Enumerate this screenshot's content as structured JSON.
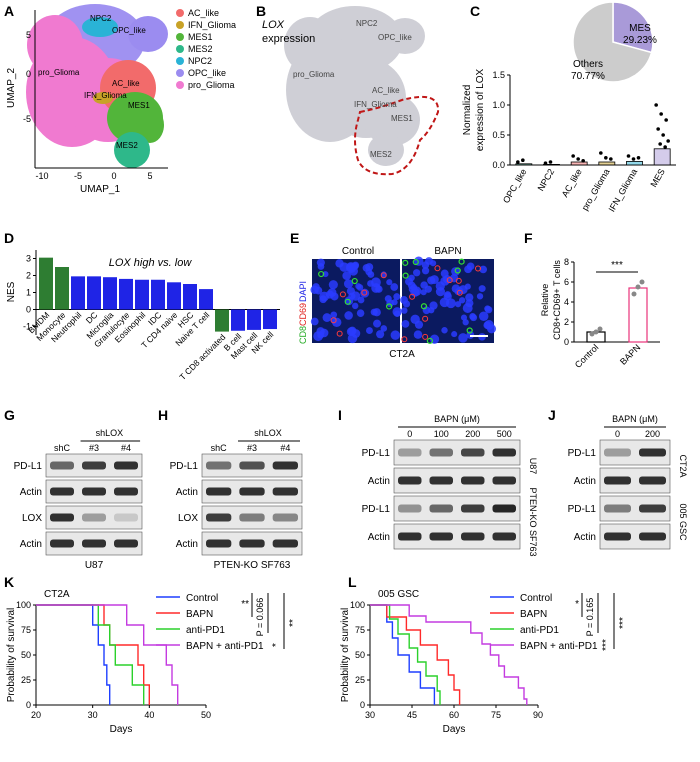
{
  "panel_letters": [
    "A",
    "B",
    "C",
    "D",
    "E",
    "F",
    "G",
    "H",
    "I",
    "J",
    "K",
    "L"
  ],
  "colors": {
    "AC_like": "#f26b6b",
    "IFN_Glioma": "#c8a227",
    "MES1": "#52b53a",
    "MES2": "#2eb88a",
    "NPC2": "#2ab3d6",
    "OPC_like": "#9b8cf0",
    "pro_Glioma": "#f07ad0",
    "nes_green": "#2e7d32",
    "nes_blue": "#1f24e6",
    "mes_purple": "#a99ad8",
    "ctrl_blue": "#1f3fff",
    "bapn_red": "#ff2a2a",
    "pd1_green": "#2bd12b",
    "combo_purple": "#c43be0",
    "f_pink": "#e8327a"
  },
  "panelA": {
    "xlabel": "UMAP_1",
    "ylabel": "UMAP_2",
    "xticks": [
      "-10",
      "-5",
      "0",
      "5"
    ],
    "yticks": [
      "5",
      "0",
      "-5"
    ],
    "cluster_labels": [
      "NPC2",
      "OPC_like",
      "pro_Glioma",
      "AC_like",
      "IFN_Glioma",
      "MES1",
      "MES2"
    ],
    "legend": [
      "AC_like",
      "IFN_Glioma",
      "MES1",
      "MES2",
      "NPC2",
      "OPC_like",
      "pro_Glioma"
    ]
  },
  "panelB": {
    "title": "LOX",
    "subtitle": "expression",
    "labels": [
      "NPC2",
      "OPC_like",
      "pro_Glioma",
      "AC_like",
      "IFN_Glioma",
      "MES1",
      "MES2"
    ]
  },
  "panelC": {
    "pie": {
      "slices": [
        {
          "label": "MES",
          "pct": "29.23%",
          "value": 29.23
        },
        {
          "label": "Others",
          "pct": "70.77%",
          "value": 70.77
        }
      ]
    },
    "ylabel_1": "Normalized",
    "ylabel_2": "expression of LOX",
    "yticks": [
      "0.0",
      "0.5",
      "1.0",
      "1.5"
    ],
    "chart_data": {
      "type": "bar",
      "categories": [
        "OPC_like",
        "NPC2",
        "AC_like",
        "pro_Glioma",
        "IFN_Glioma",
        "MES"
      ],
      "values": [
        0.02,
        0.01,
        0.05,
        0.05,
        0.06,
        0.27
      ],
      "ylim": [
        0,
        1.5
      ]
    }
  },
  "panelD": {
    "title": "LOX high vs. low",
    "ylabel": "NES",
    "yticks": [
      "3",
      "2",
      "1",
      "0",
      "-1"
    ],
    "chart_data": {
      "type": "bar",
      "categories": [
        "BMDM",
        "Monocyte",
        "Neutrophil",
        "DC",
        "Microglia",
        "Granulocyte",
        "Eosinophil",
        "IDC",
        "T CD4 naive",
        "HSC",
        "Naive T cell",
        "T CD8 activated",
        "B cell",
        "Mast cell",
        "NK cell"
      ],
      "values": [
        3.05,
        2.5,
        1.95,
        1.95,
        1.9,
        1.8,
        1.75,
        1.75,
        1.6,
        1.5,
        1.2,
        -1.3,
        -1.25,
        -1.2,
        -1.15
      ],
      "ylim": [
        -1.5,
        3.5
      ]
    }
  },
  "panelE": {
    "col1": "Control",
    "col2": "BAPN",
    "side_cd8": "CD8",
    "side_cd69": "CD69",
    "side_dapi": "DAPI",
    "caption": "CT2A"
  },
  "panelF": {
    "ylabel_1": "Relative",
    "ylabel_2": "CD8+CD69+ T cells",
    "sig": "***",
    "yticks": [
      "0",
      "2",
      "4",
      "6",
      "8"
    ],
    "chart_data": {
      "type": "bar",
      "categories": [
        "Control",
        "BAPN"
      ],
      "values": [
        1.0,
        5.4
      ],
      "ylim": [
        0,
        8
      ]
    }
  },
  "panelG": {
    "sh": "shLOX",
    "lanes": [
      "shC",
      "#3",
      "#4"
    ],
    "rows": [
      "PD-L1",
      "Actin",
      "LOX",
      "Actin"
    ],
    "caption": "U87"
  },
  "panelH": {
    "sh": "shLOX",
    "lanes": [
      "shC",
      "#3",
      "#4"
    ],
    "rows": [
      "PD-L1",
      "Actin",
      "LOX",
      "Actin"
    ],
    "caption": "PTEN-KO SF763"
  },
  "panelI": {
    "header": "BAPN (μM)",
    "lanes": [
      "0",
      "100",
      "200",
      "500"
    ],
    "rows": [
      "PD-L1",
      "Actin",
      "PD-L1",
      "Actin"
    ],
    "side1": "U87",
    "side2": "PTEN-KO SF763"
  },
  "panelJ": {
    "header": "BAPN (μM)",
    "lanes": [
      "0",
      "200"
    ],
    "rows": [
      "PD-L1",
      "Actin",
      "PD-L1",
      "Actin"
    ],
    "side1": "CT2A",
    "side2": "005 GSC"
  },
  "panelK": {
    "title": "CT2A",
    "xlabel": "Days",
    "ylabel": "Probability of survival",
    "xticks": [
      "20",
      "30",
      "40",
      "50"
    ],
    "yticks": [
      "100",
      "75",
      "50",
      "25",
      "0"
    ],
    "legend": [
      "Control",
      "BAPN",
      "anti-PD1",
      "BAPN + anti-PD1"
    ],
    "stats": [
      "**",
      "P = 0.066",
      "*",
      "**"
    ],
    "chart_data": {
      "type": "line",
      "xlim": [
        20,
        50
      ],
      "ylim": [
        0,
        100
      ],
      "series": [
        {
          "name": "Control",
          "points": [
            [
              20,
              100
            ],
            [
              30,
              100
            ],
            [
              30,
              80
            ],
            [
              31,
              80
            ],
            [
              31,
              60
            ],
            [
              32,
              60
            ],
            [
              32,
              40
            ],
            [
              32.5,
              40
            ],
            [
              32.5,
              20
            ],
            [
              33,
              20
            ],
            [
              33,
              0
            ]
          ]
        },
        {
          "name": "BAPN",
          "points": [
            [
              20,
              100
            ],
            [
              32,
              100
            ],
            [
              32,
              80
            ],
            [
              33,
              80
            ],
            [
              33,
              60
            ],
            [
              38,
              60
            ],
            [
              38,
              40
            ],
            [
              39,
              40
            ],
            [
              39,
              20
            ],
            [
              40,
              20
            ],
            [
              40,
              0
            ]
          ]
        },
        {
          "name": "anti-PD1",
          "points": [
            [
              20,
              100
            ],
            [
              31,
              100
            ],
            [
              31,
              80
            ],
            [
              33,
              80
            ],
            [
              33,
              60
            ],
            [
              34,
              60
            ],
            [
              34,
              40
            ],
            [
              37,
              40
            ],
            [
              37,
              20
            ],
            [
              39,
              20
            ],
            [
              39,
              0
            ]
          ]
        },
        {
          "name": "BAPN + anti-PD1",
          "points": [
            [
              20,
              100
            ],
            [
              36,
              100
            ],
            [
              36,
              80
            ],
            [
              39,
              80
            ],
            [
              39,
              60
            ],
            [
              43,
              60
            ],
            [
              43,
              40
            ],
            [
              44,
              40
            ],
            [
              44,
              20
            ],
            [
              45,
              20
            ],
            [
              45,
              0
            ]
          ]
        }
      ]
    }
  },
  "panelL": {
    "title": "005 GSC",
    "xlabel": "Days",
    "ylabel": "Probability of survival",
    "xticks": [
      "30",
      "45",
      "60",
      "75",
      "90"
    ],
    "yticks": [
      "100",
      "75",
      "50",
      "25",
      "0"
    ],
    "legend": [
      "Control",
      "BAPN",
      "anti-PD1",
      "BAPN + anti-PD1"
    ],
    "stats": [
      "*",
      "P = 0.165",
      "***",
      "***"
    ],
    "chart_data": {
      "type": "line",
      "xlim": [
        30,
        90
      ],
      "ylim": [
        0,
        100
      ],
      "series": [
        {
          "name": "Control",
          "points": [
            [
              30,
              100
            ],
            [
              36,
              100
            ],
            [
              36,
              83
            ],
            [
              38,
              83
            ],
            [
              38,
              67
            ],
            [
              40,
              67
            ],
            [
              40,
              50
            ],
            [
              44,
              50
            ],
            [
              44,
              33
            ],
            [
              48,
              33
            ],
            [
              48,
              17
            ],
            [
              53,
              17
            ],
            [
              53,
              0
            ]
          ]
        },
        {
          "name": "BAPN",
          "points": [
            [
              30,
              100
            ],
            [
              36,
              100
            ],
            [
              36,
              88
            ],
            [
              43,
              88
            ],
            [
              43,
              75
            ],
            [
              48,
              75
            ],
            [
              48,
              60
            ],
            [
              54,
              60
            ],
            [
              54,
              45
            ],
            [
              58,
              45
            ],
            [
              58,
              30
            ],
            [
              60,
              30
            ],
            [
              60,
              15
            ],
            [
              62,
              15
            ],
            [
              62,
              0
            ]
          ]
        },
        {
          "name": "anti-PD1",
          "points": [
            [
              30,
              100
            ],
            [
              37,
              100
            ],
            [
              37,
              86
            ],
            [
              40,
              86
            ],
            [
              40,
              71
            ],
            [
              44,
              71
            ],
            [
              44,
              57
            ],
            [
              47,
              57
            ],
            [
              47,
              43
            ],
            [
              50,
              43
            ],
            [
              50,
              29
            ],
            [
              54,
              29
            ],
            [
              54,
              14
            ],
            [
              55,
              14
            ],
            [
              55,
              0
            ]
          ]
        },
        {
          "name": "BAPN + anti-PD1",
          "points": [
            [
              30,
              100
            ],
            [
              44,
              100
            ],
            [
              44,
              89
            ],
            [
              50,
              89
            ],
            [
              50,
              83
            ],
            [
              66,
              83
            ],
            [
              66,
              72
            ],
            [
              70,
              72
            ],
            [
              70,
              61
            ],
            [
              73,
              61
            ],
            [
              73,
              50
            ],
            [
              76,
              50
            ],
            [
              76,
              39
            ],
            [
              78,
              39
            ],
            [
              78,
              28
            ],
            [
              83,
              28
            ],
            [
              83,
              17
            ],
            [
              85,
              17
            ],
            [
              85,
              6
            ],
            [
              86,
              6
            ],
            [
              86,
              0
            ]
          ]
        }
      ]
    }
  }
}
